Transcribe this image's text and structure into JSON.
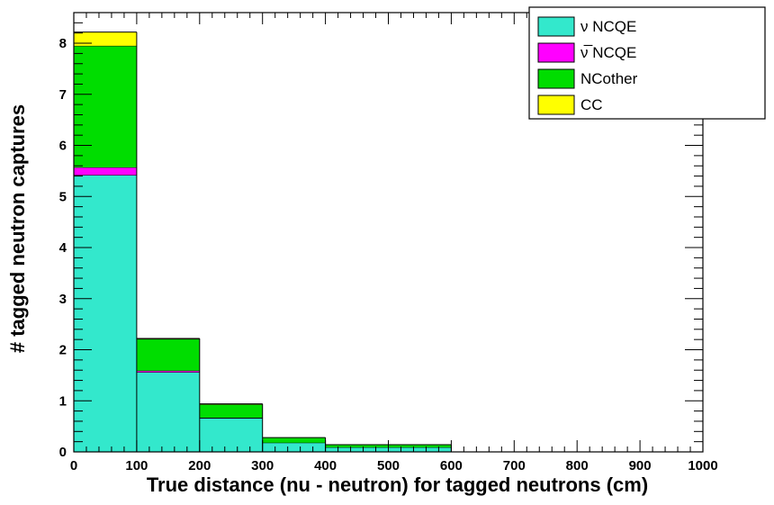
{
  "chart_data": {
    "type": "bar",
    "stacked": true,
    "xlabel": "True distance (nu - neutron) for tagged neutrons (cm)",
    "ylabel": "# tagged neutron captures",
    "xlim": [
      0,
      1000
    ],
    "ylim": [
      0,
      8.6
    ],
    "bin_edges": [
      0,
      100,
      200,
      300,
      400,
      500,
      600
    ],
    "x_ticks": [
      "0",
      "100",
      "200",
      "300",
      "400",
      "500",
      "600",
      "700",
      "800",
      "900",
      "1000"
    ],
    "y_ticks": [
      "0",
      "1",
      "2",
      "3",
      "4",
      "5",
      "6",
      "7",
      "8"
    ],
    "grid": false,
    "legend_position": "top-right",
    "series": [
      {
        "name": "ν NCQE",
        "color": "#33e8cc",
        "values": [
          5.42,
          1.56,
          0.66,
          0.18,
          0.09,
          0.09
        ]
      },
      {
        "name": "ν̅ NCQE",
        "color": "#ff00ff",
        "values": [
          0.15,
          0.03,
          0.01,
          0.0,
          0.0,
          0.0
        ]
      },
      {
        "name": "NCother",
        "color": "#00dd00",
        "values": [
          2.38,
          0.62,
          0.26,
          0.1,
          0.05,
          0.05
        ]
      },
      {
        "name": "CC",
        "color": "#ffff00",
        "values": [
          0.27,
          0.01,
          0.01,
          0.0,
          0.0,
          0.0
        ]
      }
    ]
  }
}
